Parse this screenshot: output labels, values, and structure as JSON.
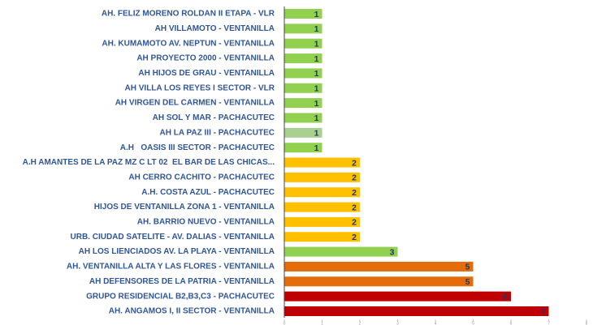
{
  "chart_data": {
    "type": "hbar",
    "categories": [
      "AH. FELIZ MORENO ROLDAN II ETAPA - VLR",
      "AH VILLAMOTO - VENTANILLA",
      "AH. KUMAMOTO AV. NEPTUN - VENTANILLA",
      "AH PROYECTO 2000 - VENTANILLA",
      "AH HIJOS DE GRAU - VENTANILLA",
      "AH VILLA LOS REYES I SECTOR - VLR",
      "AH VIRGEN DEL CARMEN - VENTANILLA",
      "AH SOL Y MAR - PACHACUTEC",
      "AH LA PAZ III - PACHACUTEC",
      "A.H   OASIS III SECTOR - PACHACUTEC",
      "A.H AMANTES DE LA PAZ MZ C LT 02  EL BAR DE LAS CHICAS...",
      "AH CERRO CACHITO - PACHACUTEC",
      "A.H. COSTA AZUL - PACHACUTEC",
      "HIJOS DE VENTANILLA ZONA 1 - VENTANILLA",
      "AH. BARRIO NUEVO - VENTANILLA",
      "URB. CIUDAD SATELITE - AV. DALIAS - VENTANILLA",
      "AH LOS LIENCIADOS AV. LA PLAYA - VENTANILLA",
      "AH. VENTANILLA ALTA Y LAS FLORES - VENTANILLA",
      "AH DEFENSORES DE LA PATRIA - VENTANILLA",
      "GRUPO RESIDENCIAL B2,B3,C3 - PACHACUTEC",
      "AH. ANGAMOS I, II SECTOR - VENTANILLA"
    ],
    "values": [
      1,
      1,
      1,
      1,
      1,
      1,
      1,
      1,
      1,
      1,
      2,
      2,
      2,
      2,
      2,
      2,
      3,
      5,
      5,
      6,
      7
    ],
    "colors": [
      "#92d050",
      "#92d050",
      "#92d050",
      "#92d050",
      "#92d050",
      "#92d050",
      "#92d050",
      "#92d050",
      "#a9d08e",
      "#92d050",
      "#ffc000",
      "#ffc000",
      "#ffc000",
      "#ffc000",
      "#ffc000",
      "#ffc000",
      "#92d050",
      "#e46c0a",
      "#e46c0a",
      "#c00000",
      "#c00000"
    ],
    "xlim": [
      0,
      8
    ],
    "xticks": [
      0,
      1,
      2,
      3,
      4,
      5,
      6,
      7,
      8
    ]
  }
}
